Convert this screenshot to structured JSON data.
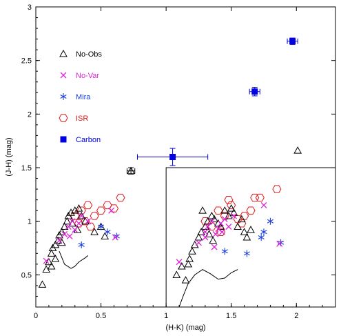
{
  "chart_data": {
    "type": "scatter",
    "title": "",
    "xlabel": "(H-K) (mag)",
    "ylabel": "(J-H) (mag)",
    "xlim": [
      0,
      2.3
    ],
    "ylim": [
      0.2,
      3.0
    ],
    "x_ticks": [
      {
        "value": 0,
        "label": "0"
      },
      {
        "value": 0.5,
        "label": "0.5"
      },
      {
        "value": 1,
        "label": "1"
      },
      {
        "value": 1.5,
        "label": "1.5"
      },
      {
        "value": 2,
        "label": "2"
      }
    ],
    "y_ticks": [
      {
        "value": 0.5,
        "label": "0.5"
      },
      {
        "value": 1,
        "label": "1"
      },
      {
        "value": 1.5,
        "label": "1.5"
      },
      {
        "value": 2,
        "label": "2"
      },
      {
        "value": 2.5,
        "label": "2.5"
      },
      {
        "value": 3,
        "label": "3"
      }
    ],
    "legend_position": "top-left",
    "colors": {
      "No-Obs": "#000000",
      "No-Var": "#e020d8",
      "Mira": "#1a3fe0",
      "ISR": "#e01818",
      "Carbon": "#0000e0"
    },
    "series": [
      {
        "name": "No-Obs",
        "marker": "triangle",
        "points": [
          [
            0.05,
            0.41
          ],
          [
            0.08,
            0.55
          ],
          [
            0.1,
            0.62
          ],
          [
            0.12,
            0.7
          ],
          [
            0.13,
            0.75
          ],
          [
            0.15,
            0.78
          ],
          [
            0.17,
            0.82
          ],
          [
            0.18,
            0.87
          ],
          [
            0.2,
            0.9
          ],
          [
            0.22,
            0.95
          ],
          [
            0.24,
            1.0
          ],
          [
            0.25,
            1.05
          ],
          [
            0.27,
            1.08
          ],
          [
            0.3,
            1.1
          ],
          [
            0.33,
            1.12
          ],
          [
            0.35,
            1.05
          ],
          [
            0.38,
            1.0
          ],
          [
            0.2,
            0.8
          ],
          [
            0.15,
            0.65
          ],
          [
            0.12,
            0.58
          ],
          [
            0.45,
            0.9
          ],
          [
            0.5,
            0.95
          ],
          [
            0.53,
            0.86
          ],
          [
            0.28,
            0.98
          ],
          [
            0.32,
            0.92
          ],
          [
            0.73,
            1.47
          ],
          [
            2.01,
            1.66
          ],
          [
            1.08,
            0.5
          ],
          [
            1.12,
            0.58
          ],
          [
            1.15,
            0.45
          ],
          [
            1.18,
            0.65
          ],
          [
            1.2,
            0.72
          ],
          [
            1.22,
            0.78
          ],
          [
            1.25,
            0.85
          ],
          [
            1.27,
            0.9
          ],
          [
            1.3,
            0.95
          ],
          [
            1.32,
            1.0
          ],
          [
            1.35,
            1.05
          ],
          [
            1.37,
            1.02
          ],
          [
            1.4,
            0.98
          ],
          [
            1.42,
            0.95
          ],
          [
            1.45,
            1.1
          ],
          [
            1.48,
            1.05
          ],
          [
            1.5,
            1.12
          ],
          [
            1.52,
            1.08
          ],
          [
            1.55,
            0.95
          ],
          [
            1.58,
            1.02
          ],
          [
            1.6,
            0.9
          ],
          [
            1.62,
            0.85
          ],
          [
            1.65,
            0.92
          ],
          [
            1.28,
            1.1
          ],
          [
            1.33,
            0.88
          ],
          [
            1.36,
            0.82
          ],
          [
            1.17,
            0.6
          ]
        ]
      },
      {
        "name": "No-Var",
        "marker": "cross",
        "points": [
          [
            0.08,
            0.63
          ],
          [
            0.18,
            0.82
          ],
          [
            0.22,
            0.88
          ],
          [
            0.25,
            0.95
          ],
          [
            0.28,
            1.0
          ],
          [
            0.3,
            0.92
          ],
          [
            0.33,
            0.98
          ],
          [
            0.26,
            0.86
          ],
          [
            0.35,
            1.05
          ],
          [
            0.4,
            1.0
          ],
          [
            0.58,
            1.1
          ],
          [
            0.61,
            0.85
          ],
          [
            1.1,
            0.62
          ],
          [
            1.25,
            0.8
          ],
          [
            1.3,
            0.9
          ],
          [
            1.32,
            0.95
          ],
          [
            1.35,
            1.0
          ],
          [
            1.38,
            0.88
          ],
          [
            1.4,
            0.93
          ],
          [
            1.42,
            0.98
          ],
          [
            1.45,
            1.02
          ],
          [
            1.48,
            0.95
          ],
          [
            1.52,
            1.05
          ],
          [
            1.37,
            0.76
          ],
          [
            1.75,
            1.15
          ],
          [
            1.87,
            0.79
          ],
          [
            1.3,
            0.85
          ],
          [
            1.43,
            0.9
          ]
        ]
      },
      {
        "name": "Mira",
        "marker": "asterisk",
        "points": [
          [
            0.35,
            0.78
          ],
          [
            0.5,
            0.95
          ],
          [
            0.55,
            0.9
          ],
          [
            0.62,
            0.86
          ],
          [
            1.45,
            0.72
          ],
          [
            1.62,
            0.7
          ],
          [
            1.75,
            0.9
          ],
          [
            1.8,
            1.0
          ],
          [
            1.73,
            0.85
          ],
          [
            1.88,
            0.8
          ]
        ]
      },
      {
        "name": "ISR",
        "marker": "hexagon",
        "points": [
          [
            0.3,
            1.05
          ],
          [
            0.35,
            1.1
          ],
          [
            0.4,
            1.15
          ],
          [
            0.45,
            1.05
          ],
          [
            0.5,
            1.1
          ],
          [
            0.55,
            1.15
          ],
          [
            0.6,
            1.12
          ],
          [
            0.65,
            1.22
          ],
          [
            0.38,
            1.0
          ],
          [
            0.42,
            0.95
          ],
          [
            0.33,
            0.98
          ],
          [
            1.3,
            1.0
          ],
          [
            1.35,
            0.95
          ],
          [
            1.4,
            1.1
          ],
          [
            1.45,
            1.05
          ],
          [
            1.5,
            1.15
          ],
          [
            1.55,
            1.02
          ],
          [
            1.6,
            1.05
          ],
          [
            1.65,
            1.1
          ],
          [
            1.72,
            1.22
          ],
          [
            1.85,
            1.3
          ],
          [
            1.68,
            1.22
          ],
          [
            1.58,
            0.98
          ],
          [
            1.42,
            0.9
          ],
          [
            1.48,
            1.2
          ]
        ]
      },
      {
        "name": "Carbon",
        "marker": "square",
        "points": [
          [
            1.05,
            1.6
          ],
          [
            1.68,
            2.21
          ],
          [
            1.97,
            2.68
          ]
        ]
      }
    ],
    "error_bars": [
      {
        "x": 1.05,
        "y": 1.6,
        "xerr": [
          0.27,
          0.27
        ],
        "yerr": [
          0.08,
          0.08
        ]
      },
      {
        "x": 1.68,
        "y": 2.21,
        "xerr": [
          0.04,
          0.04
        ],
        "yerr": [
          0.04,
          0.04
        ]
      },
      {
        "x": 1.97,
        "y": 2.68,
        "xerr": [
          0.04,
          0.04
        ],
        "yerr": [
          0.03,
          0.03
        ]
      },
      {
        "x": 0.73,
        "y": 1.47,
        "xerr": [
          0.03,
          0.03
        ],
        "yerr": [
          0.03,
          0.03
        ]
      }
    ],
    "curves": [
      {
        "points": [
          [
            0.18,
            0.72
          ],
          [
            0.22,
            0.6
          ],
          [
            0.27,
            0.56
          ],
          [
            0.3,
            0.58
          ],
          [
            0.33,
            0.62
          ],
          [
            0.38,
            0.66
          ],
          [
            0.4,
            0.68
          ]
        ]
      },
      {
        "points": [
          [
            1.1,
            0.2
          ],
          [
            1.13,
            0.3
          ],
          [
            1.17,
            0.42
          ],
          [
            1.22,
            0.5
          ],
          [
            1.28,
            0.55
          ],
          [
            1.34,
            0.51
          ],
          [
            1.4,
            0.46
          ],
          [
            1.45,
            0.47
          ],
          [
            1.5,
            0.52
          ],
          [
            1.55,
            0.55
          ]
        ]
      }
    ],
    "region_box": {
      "x0": 1.0,
      "y0": 0.2,
      "x1": 2.3,
      "y1": 1.5
    }
  }
}
